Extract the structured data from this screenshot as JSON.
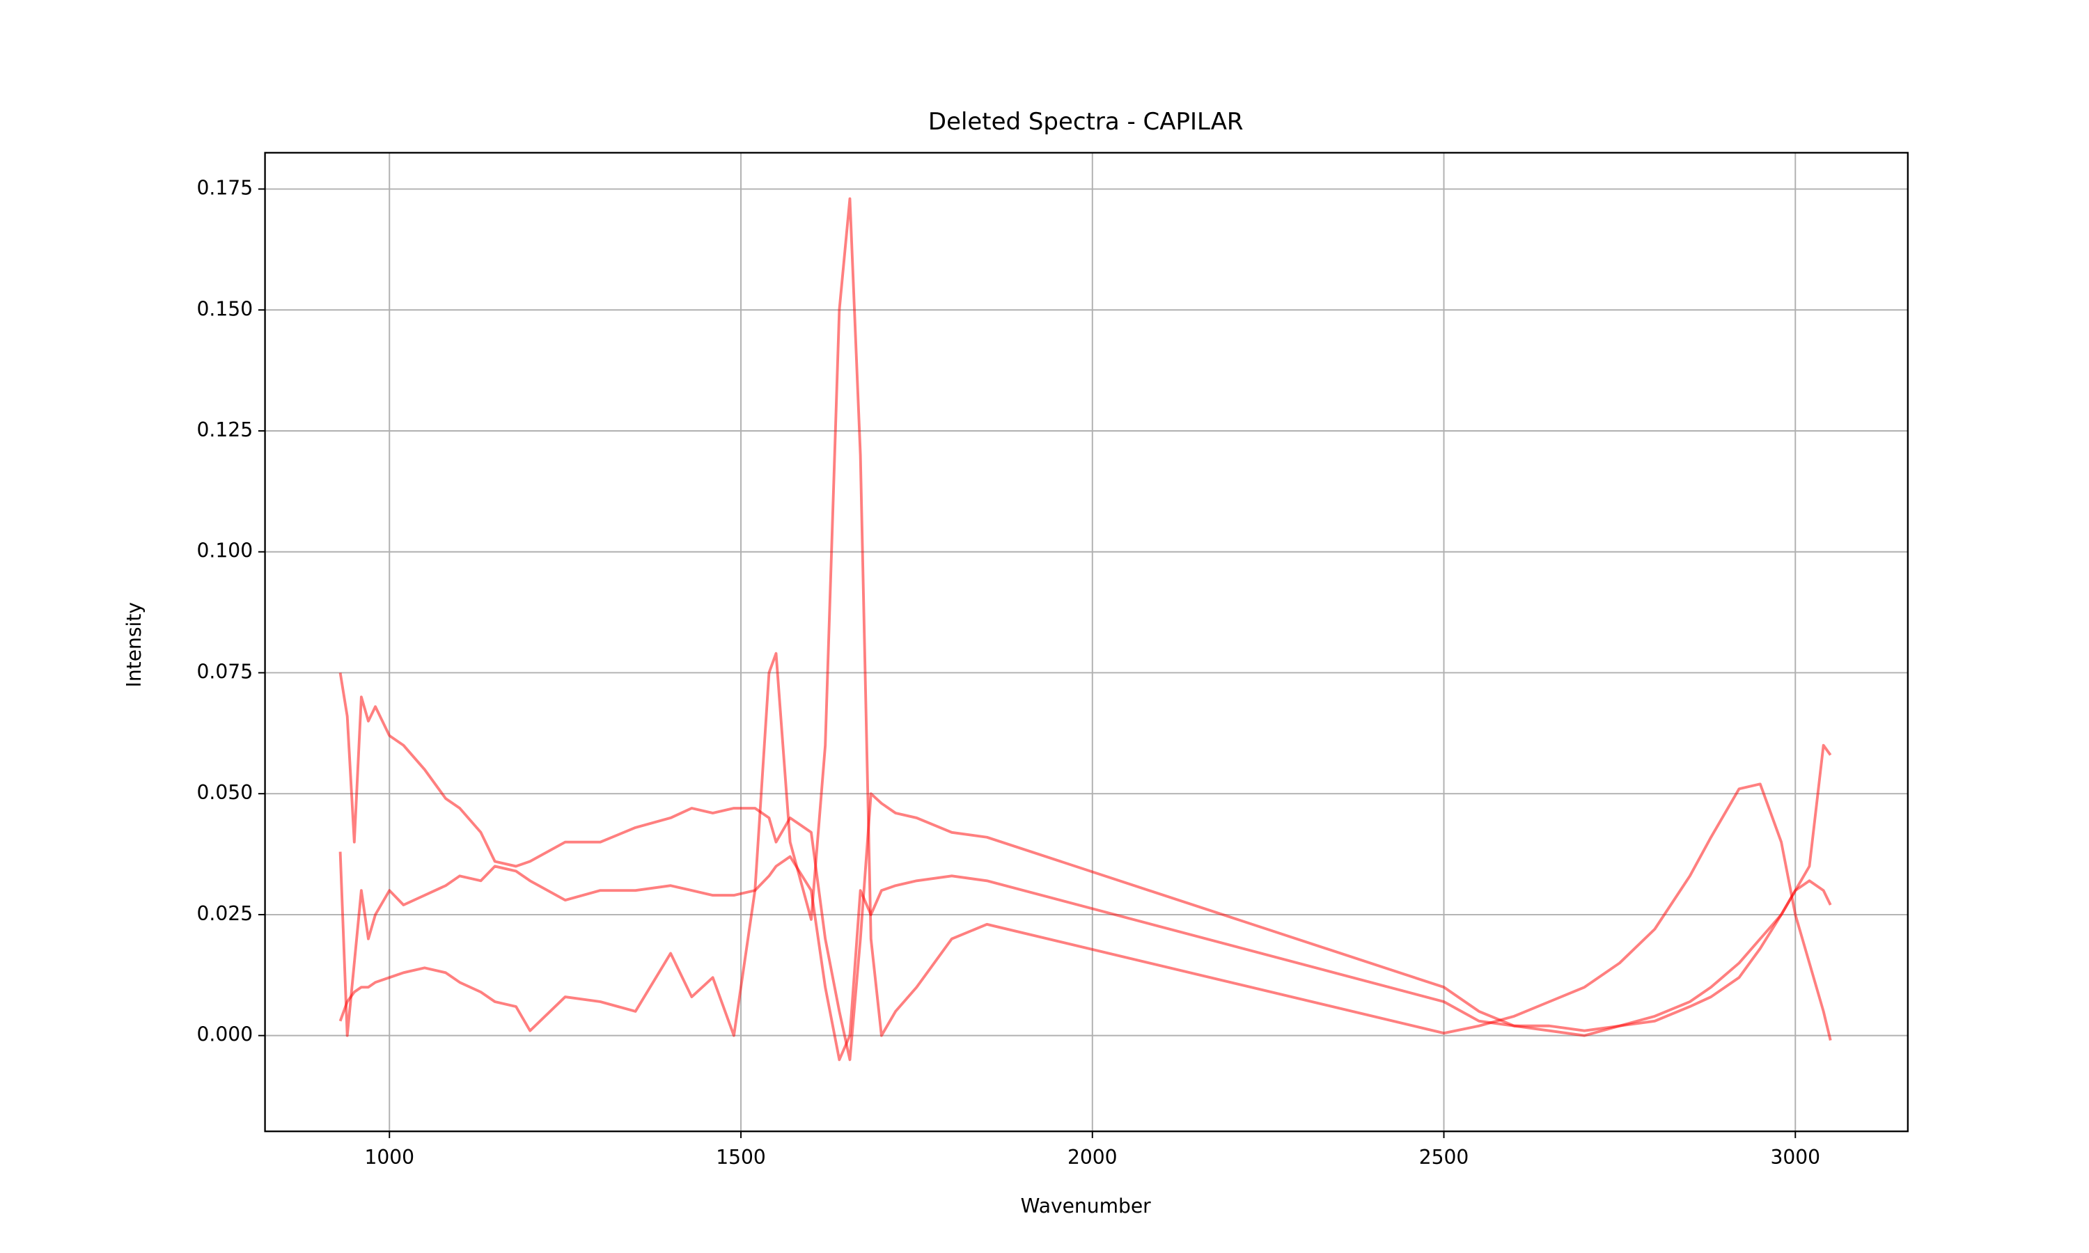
{
  "chart_data": {
    "type": "line",
    "title": "Deleted Spectra - CAPILAR",
    "x_label": "Wavenumber",
    "y_label": "Intensity",
    "x": [
      930,
      940,
      950,
      960,
      970,
      980,
      1000,
      1020,
      1050,
      1080,
      1100,
      1130,
      1150,
      1180,
      1200,
      1250,
      1300,
      1350,
      1400,
      1430,
      1460,
      1490,
      1520,
      1540,
      1550,
      1570,
      1600,
      1620,
      1640,
      1655,
      1670,
      1685,
      1700,
      1720,
      1750,
      1800,
      1850,
      2500,
      2550,
      2600,
      2650,
      2700,
      2750,
      2800,
      2850,
      2880,
      2920,
      2950,
      2980,
      3000,
      3020,
      3040,
      3050
    ],
    "series": [
      {
        "color": "#ff0000",
        "alpha": 0.5,
        "values": [
          0.075,
          0.066,
          0.04,
          0.07,
          0.065,
          0.068,
          0.062,
          0.06,
          0.055,
          0.049,
          0.047,
          0.042,
          0.036,
          0.035,
          0.036,
          0.04,
          0.04,
          0.043,
          0.045,
          0.047,
          0.046,
          0.047,
          0.047,
          0.045,
          0.04,
          0.045,
          0.042,
          0.02,
          0.005,
          -0.005,
          0.02,
          0.05,
          0.048,
          0.046,
          0.045,
          0.042,
          0.041,
          0.01,
          0.005,
          0.002,
          0.002,
          0.001,
          0.002,
          0.004,
          0.007,
          0.01,
          0.015,
          0.02,
          0.025,
          0.03,
          0.035,
          0.06,
          0.058
        ]
      },
      {
        "color": "#ff0000",
        "alpha": 0.5,
        "values": [
          0.038,
          0.0,
          0.015,
          0.03,
          0.02,
          0.025,
          0.03,
          0.027,
          0.029,
          0.031,
          0.033,
          0.032,
          0.035,
          0.034,
          0.032,
          0.028,
          0.03,
          0.03,
          0.031,
          0.03,
          0.029,
          0.029,
          0.03,
          0.033,
          0.035,
          0.037,
          0.03,
          0.01,
          -0.005,
          0.0,
          0.03,
          0.025,
          0.03,
          0.031,
          0.032,
          0.033,
          0.032,
          0.007,
          0.003,
          0.002,
          0.001,
          0.0,
          0.002,
          0.003,
          0.006,
          0.008,
          0.012,
          0.018,
          0.025,
          0.03,
          0.032,
          0.03,
          0.027
        ]
      },
      {
        "color": "#ff0000",
        "alpha": 0.5,
        "values": [
          0.003,
          0.007,
          0.009,
          0.01,
          0.01,
          0.011,
          0.012,
          0.013,
          0.014,
          0.013,
          0.011,
          0.009,
          0.007,
          0.006,
          0.001,
          0.008,
          0.007,
          0.005,
          0.017,
          0.008,
          0.012,
          0.0,
          0.03,
          0.075,
          0.079,
          0.04,
          0.024,
          0.06,
          0.15,
          0.173,
          0.12,
          0.02,
          0.0,
          0.005,
          0.01,
          0.02,
          0.023,
          0.0005,
          0.002,
          0.004,
          0.007,
          0.01,
          0.015,
          0.022,
          0.033,
          0.041,
          0.051,
          0.052,
          0.04,
          0.025,
          0.015,
          0.005,
          -0.001
        ]
      }
    ],
    "xlim": [
      823,
      3160
    ],
    "ylim": [
      -0.0198,
      0.1825
    ],
    "xticks": [
      1000,
      1500,
      2000,
      2500,
      3000
    ],
    "yticks": [
      {
        "value": 0,
        "label": "0.000"
      },
      0.025,
      {
        "value": 0.05,
        "label": "0.050"
      },
      0.075,
      {
        "value": 0.1,
        "label": "0.100"
      },
      0.125,
      {
        "value": 0.15,
        "label": "0.150"
      },
      0.175
    ],
    "grid": true
  }
}
